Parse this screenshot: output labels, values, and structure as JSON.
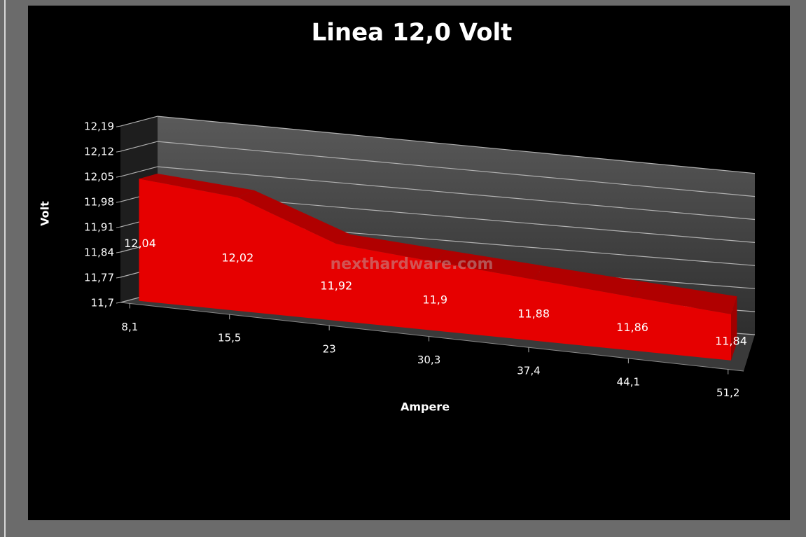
{
  "chart_data": {
    "type": "area3d",
    "title": "Linea 12,0 Volt",
    "xlabel": "Ampere",
    "ylabel": "Volt",
    "annotation": "nexthardware.com",
    "categories": [
      "8,1",
      "15,5",
      "23",
      "30,3",
      "37,4",
      "44,1",
      "51,2"
    ],
    "values": [
      12.04,
      12.02,
      11.92,
      11.9,
      11.88,
      11.86,
      11.84
    ],
    "value_labels": [
      "12,04",
      "12,02",
      "11,92",
      "11,9",
      "11,88",
      "11,86",
      "11,84"
    ],
    "color": "#e60000",
    "ylim": [
      11.7,
      12.19
    ],
    "yticks": [
      {
        "value": 11.7,
        "label": "11,7"
      },
      {
        "value": 11.77,
        "label": "11,77"
      },
      {
        "value": 11.84,
        "label": "11,84"
      },
      {
        "value": 11.91,
        "label": "11,91"
      },
      {
        "value": 11.98,
        "label": "11,98"
      },
      {
        "value": 12.05,
        "label": "12,05"
      },
      {
        "value": 12.12,
        "label": "12,12"
      },
      {
        "value": 12.19,
        "label": "12,19"
      }
    ],
    "grid": true
  }
}
